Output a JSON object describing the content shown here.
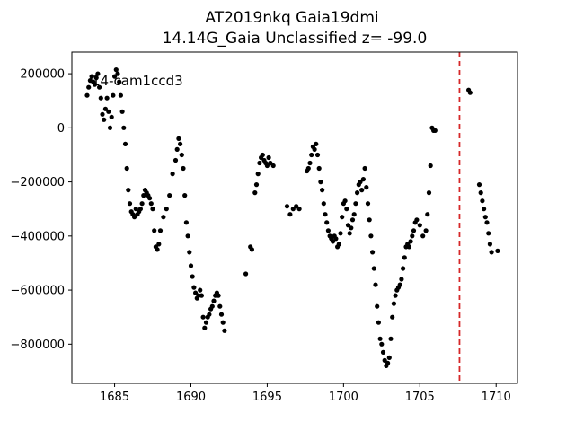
{
  "chart_data": {
    "type": "scatter",
    "title": "AT2019nkq  Gaia19dmi",
    "subtitle": "14.14G_Gaia Unclassified z= -99.0",
    "annotation": "14-cam1ccd3",
    "xlabel": "",
    "ylabel": "",
    "xlim": [
      1682.2,
      1711.4
    ],
    "ylim": [
      -945000,
      280000
    ],
    "xticks": [
      1685,
      1690,
      1695,
      1700,
      1705,
      1710
    ],
    "yticks": [
      200000,
      0,
      -200000,
      -400000,
      -600000,
      -800000
    ],
    "ytick_labels": [
      "200000",
      "0",
      "−200000",
      "−400000",
      "−600000",
      "−800000"
    ],
    "grid": false,
    "marker_color": "#000000",
    "vline": {
      "x": 1707.6,
      "color": "#d62728",
      "style": "dashed"
    },
    "series": [
      {
        "values": [
          [
            1683.2,
            120000
          ],
          [
            1683.3,
            150000
          ],
          [
            1683.4,
            175000
          ],
          [
            1683.5,
            190000
          ],
          [
            1683.6,
            170000
          ],
          [
            1683.7,
            160000
          ],
          [
            1683.8,
            185000
          ],
          [
            1683.9,
            200000
          ],
          [
            1684.0,
            150000
          ],
          [
            1684.1,
            110000
          ],
          [
            1684.2,
            50000
          ],
          [
            1684.3,
            30000
          ],
          [
            1684.4,
            70000
          ],
          [
            1684.5,
            110000
          ],
          [
            1684.6,
            60000
          ],
          [
            1684.7,
            0
          ],
          [
            1684.8,
            40000
          ],
          [
            1684.9,
            120000
          ],
          [
            1685.0,
            190000
          ],
          [
            1685.1,
            215000
          ],
          [
            1685.2,
            200000
          ],
          [
            1685.3,
            170000
          ],
          [
            1685.4,
            120000
          ],
          [
            1685.5,
            60000
          ],
          [
            1685.6,
            0
          ],
          [
            1685.7,
            -60000
          ],
          [
            1685.8,
            -150000
          ],
          [
            1685.9,
            -230000
          ],
          [
            1686.0,
            -280000
          ],
          [
            1686.1,
            -310000
          ],
          [
            1686.2,
            -320000
          ],
          [
            1686.3,
            -330000
          ],
          [
            1686.4,
            -300000
          ],
          [
            1686.5,
            -320000
          ],
          [
            1686.6,
            -310000
          ],
          [
            1686.7,
            -300000
          ],
          [
            1686.8,
            -280000
          ],
          [
            1686.9,
            -250000
          ],
          [
            1687.0,
            -230000
          ],
          [
            1687.1,
            -240000
          ],
          [
            1687.2,
            -250000
          ],
          [
            1687.3,
            -260000
          ],
          [
            1687.4,
            -280000
          ],
          [
            1687.5,
            -300000
          ],
          [
            1687.6,
            -380000
          ],
          [
            1687.7,
            -440000
          ],
          [
            1687.8,
            -450000
          ],
          [
            1687.9,
            -430000
          ],
          [
            1688.0,
            -380000
          ],
          [
            1688.2,
            -330000
          ],
          [
            1688.4,
            -300000
          ],
          [
            1688.6,
            -250000
          ],
          [
            1688.8,
            -170000
          ],
          [
            1689.0,
            -120000
          ],
          [
            1689.1,
            -80000
          ],
          [
            1689.2,
            -40000
          ],
          [
            1689.3,
            -60000
          ],
          [
            1689.4,
            -100000
          ],
          [
            1689.5,
            -150000
          ],
          [
            1689.6,
            -250000
          ],
          [
            1689.7,
            -350000
          ],
          [
            1689.8,
            -400000
          ],
          [
            1689.9,
            -460000
          ],
          [
            1690.0,
            -510000
          ],
          [
            1690.1,
            -550000
          ],
          [
            1690.2,
            -590000
          ],
          [
            1690.3,
            -610000
          ],
          [
            1690.4,
            -630000
          ],
          [
            1690.5,
            -620000
          ],
          [
            1690.6,
            -600000
          ],
          [
            1690.7,
            -620000
          ],
          [
            1690.8,
            -700000
          ],
          [
            1690.9,
            -740000
          ],
          [
            1691.0,
            -720000
          ],
          [
            1691.1,
            -700000
          ],
          [
            1691.2,
            -690000
          ],
          [
            1691.3,
            -670000
          ],
          [
            1691.4,
            -660000
          ],
          [
            1691.5,
            -640000
          ],
          [
            1691.6,
            -620000
          ],
          [
            1691.7,
            -610000
          ],
          [
            1691.8,
            -620000
          ],
          [
            1691.9,
            -660000
          ],
          [
            1692.0,
            -690000
          ],
          [
            1692.1,
            -720000
          ],
          [
            1692.2,
            -750000
          ],
          [
            1693.6,
            -540000
          ],
          [
            1693.9,
            -440000
          ],
          [
            1694.0,
            -450000
          ],
          [
            1694.2,
            -240000
          ],
          [
            1694.3,
            -210000
          ],
          [
            1694.4,
            -170000
          ],
          [
            1694.5,
            -130000
          ],
          [
            1694.6,
            -110000
          ],
          [
            1694.7,
            -100000
          ],
          [
            1694.8,
            -120000
          ],
          [
            1694.9,
            -130000
          ],
          [
            1695.0,
            -140000
          ],
          [
            1695.1,
            -110000
          ],
          [
            1695.2,
            -130000
          ],
          [
            1695.4,
            -140000
          ],
          [
            1696.3,
            -290000
          ],
          [
            1696.5,
            -320000
          ],
          [
            1696.7,
            -300000
          ],
          [
            1696.9,
            -290000
          ],
          [
            1697.1,
            -300000
          ],
          [
            1697.6,
            -160000
          ],
          [
            1697.7,
            -150000
          ],
          [
            1697.8,
            -130000
          ],
          [
            1697.9,
            -100000
          ],
          [
            1698.0,
            -70000
          ],
          [
            1698.1,
            -80000
          ],
          [
            1698.2,
            -60000
          ],
          [
            1698.3,
            -100000
          ],
          [
            1698.4,
            -150000
          ],
          [
            1698.5,
            -200000
          ],
          [
            1698.6,
            -230000
          ],
          [
            1698.7,
            -280000
          ],
          [
            1698.8,
            -320000
          ],
          [
            1698.9,
            -350000
          ],
          [
            1699.0,
            -380000
          ],
          [
            1699.1,
            -400000
          ],
          [
            1699.2,
            -410000
          ],
          [
            1699.3,
            -420000
          ],
          [
            1699.4,
            -400000
          ],
          [
            1699.5,
            -410000
          ],
          [
            1699.6,
            -440000
          ],
          [
            1699.7,
            -430000
          ],
          [
            1699.8,
            -390000
          ],
          [
            1699.9,
            -330000
          ],
          [
            1700.0,
            -280000
          ],
          [
            1700.1,
            -270000
          ],
          [
            1700.2,
            -300000
          ],
          [
            1700.3,
            -360000
          ],
          [
            1700.4,
            -390000
          ],
          [
            1700.5,
            -370000
          ],
          [
            1700.6,
            -340000
          ],
          [
            1700.7,
            -320000
          ],
          [
            1700.8,
            -280000
          ],
          [
            1700.9,
            -240000
          ],
          [
            1701.0,
            -210000
          ],
          [
            1701.1,
            -200000
          ],
          [
            1701.2,
            -230000
          ],
          [
            1701.3,
            -190000
          ],
          [
            1701.4,
            -150000
          ],
          [
            1701.5,
            -220000
          ],
          [
            1701.6,
            -280000
          ],
          [
            1701.7,
            -340000
          ],
          [
            1701.8,
            -400000
          ],
          [
            1701.9,
            -460000
          ],
          [
            1702.0,
            -520000
          ],
          [
            1702.1,
            -580000
          ],
          [
            1702.2,
            -660000
          ],
          [
            1702.3,
            -720000
          ],
          [
            1702.4,
            -780000
          ],
          [
            1702.5,
            -800000
          ],
          [
            1702.6,
            -830000
          ],
          [
            1702.7,
            -860000
          ],
          [
            1702.8,
            -880000
          ],
          [
            1702.9,
            -870000
          ],
          [
            1703.0,
            -850000
          ],
          [
            1703.1,
            -780000
          ],
          [
            1703.2,
            -700000
          ],
          [
            1703.3,
            -650000
          ],
          [
            1703.4,
            -620000
          ],
          [
            1703.5,
            -600000
          ],
          [
            1703.6,
            -590000
          ],
          [
            1703.7,
            -580000
          ],
          [
            1703.8,
            -560000
          ],
          [
            1703.9,
            -520000
          ],
          [
            1704.0,
            -480000
          ],
          [
            1704.1,
            -440000
          ],
          [
            1704.2,
            -430000
          ],
          [
            1704.3,
            -440000
          ],
          [
            1704.4,
            -420000
          ],
          [
            1704.5,
            -400000
          ],
          [
            1704.6,
            -380000
          ],
          [
            1704.7,
            -350000
          ],
          [
            1704.8,
            -340000
          ],
          [
            1705.0,
            -360000
          ],
          [
            1705.2,
            -400000
          ],
          [
            1705.4,
            -380000
          ],
          [
            1705.5,
            -320000
          ],
          [
            1705.6,
            -240000
          ],
          [
            1705.7,
            -140000
          ],
          [
            1705.8,
            0
          ],
          [
            1705.9,
            -10000
          ],
          [
            1706.0,
            -10000
          ],
          [
            1708.2,
            140000
          ],
          [
            1708.3,
            130000
          ],
          [
            1708.9,
            -210000
          ],
          [
            1709.0,
            -240000
          ],
          [
            1709.1,
            -270000
          ],
          [
            1709.2,
            -300000
          ],
          [
            1709.3,
            -330000
          ],
          [
            1709.4,
            -350000
          ],
          [
            1709.5,
            -390000
          ],
          [
            1709.6,
            -430000
          ],
          [
            1709.7,
            -460000
          ],
          [
            1710.1,
            -455000
          ]
        ]
      }
    ]
  }
}
